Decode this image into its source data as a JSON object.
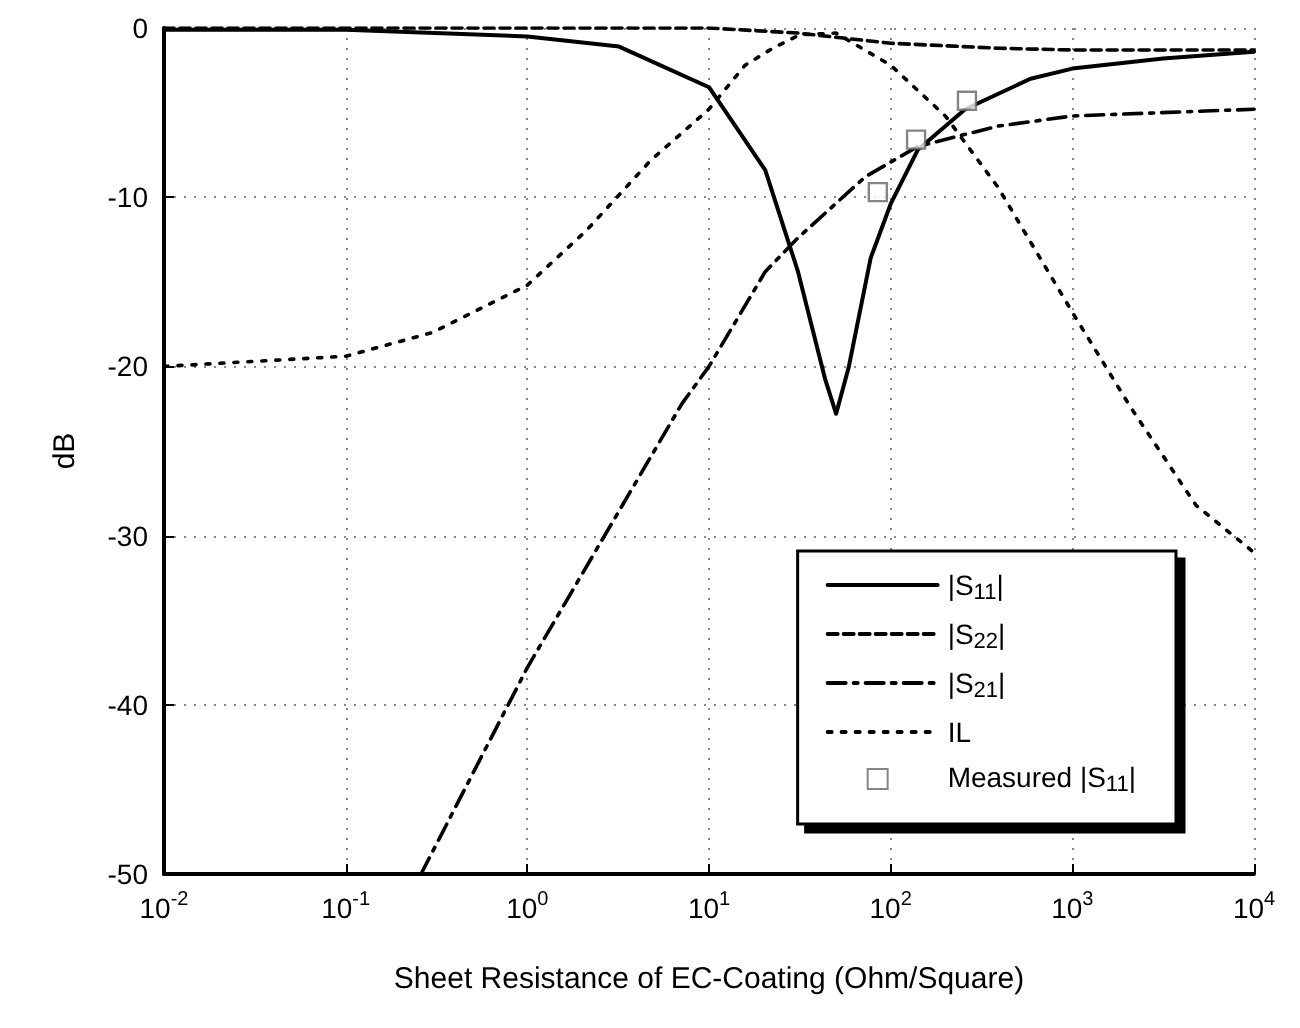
{
  "chart_data": {
    "type": "line",
    "xlabel": "Sheet Resistance of EC-Coating (Ohm/Square)",
    "ylabel": "dB",
    "log": "x",
    "grid": true,
    "legend": "bottom right",
    "xlim": [
      0.01,
      10000
    ],
    "xticks": [
      {
        "value": 0.01,
        "label": "10$^{-2}$"
      },
      {
        "value": 0.1,
        "label": "10$^{-1}$"
      },
      {
        "value": 1,
        "label": "10$^{0}$"
      },
      {
        "value": 10,
        "label": "10$^{1}$"
      },
      {
        "value": 100,
        "label": "10$^{2}$"
      },
      {
        "value": 1000,
        "label": "10$^{3}$"
      },
      {
        "value": 10000,
        "label": "10$^{4}$"
      }
    ],
    "ylim": [
      -50,
      0
    ],
    "yticks": [
      -50,
      -40,
      -30,
      -20,
      -10,
      0
    ],
    "series": [
      {
        "name": "|S$_{11}$|",
        "color": "#000000",
        "line_style": "solid",
        "marker": "none",
        "x": [
          0.01,
          0.1,
          1,
          3.2,
          10,
          20.4,
          30.9,
          43.7,
          50.1,
          58.9,
          77.6,
          100,
          141,
          257,
          589,
          1000,
          3162,
          10000
        ],
        "values": [
          -0.1,
          -0.1,
          -0.5,
          -1.1,
          -3.5,
          -8.4,
          -14.4,
          -20.8,
          -22.8,
          -20,
          -13.6,
          -10.4,
          -7.2,
          -4.8,
          -3,
          -2.4,
          -1.8,
          -1.4
        ]
      },
      {
        "name": "|S$_{22}$|",
        "color": "#000000",
        "line_style": "dashed",
        "marker": "none",
        "x": [
          0.01,
          1,
          10,
          30.9,
          100,
          400,
          1000,
          10000
        ],
        "values": [
          0,
          0,
          0,
          -0.3,
          -0.9,
          -1.2,
          -1.3,
          -1.3
        ]
      },
      {
        "name": "|S$_{21}$|",
        "color": "#000000",
        "line_style": "dashdot",
        "marker": "none",
        "x": [
          0.26,
          1,
          2.8,
          7.1,
          10,
          20.4,
          30.9,
          72.4,
          141,
          389,
          1000,
          10000
        ],
        "values": [
          -50,
          -37.8,
          -29.6,
          -22.2,
          -20,
          -14.4,
          -12.4,
          -8.8,
          -7,
          -5.8,
          -5.2,
          -4.8
        ]
      },
      {
        "name": "IL",
        "color": "#000000",
        "line_style": "dotted",
        "marker": "none",
        "x": [
          0.01,
          0.1,
          0.3,
          1,
          2.1,
          4.8,
          10,
          15.8,
          22.4,
          31.6,
          50,
          100,
          200,
          389,
          1000,
          2089,
          4786,
          10000
        ],
        "values": [
          -20,
          -19.4,
          -18,
          -15.2,
          -12,
          -7.8,
          -4.8,
          -2.2,
          -1.2,
          -0.4,
          -0.3,
          -2.2,
          -5.2,
          -9.4,
          -16.8,
          -22.4,
          -28.2,
          -31
        ]
      },
      {
        "name": "Measured |S$_{11}$|",
        "type": "scatter",
        "color": "#666666",
        "marker": "square",
        "x": [
          85,
          138,
          263
        ],
        "values": [
          -9.7,
          -6.6,
          -4.3
        ]
      }
    ]
  }
}
